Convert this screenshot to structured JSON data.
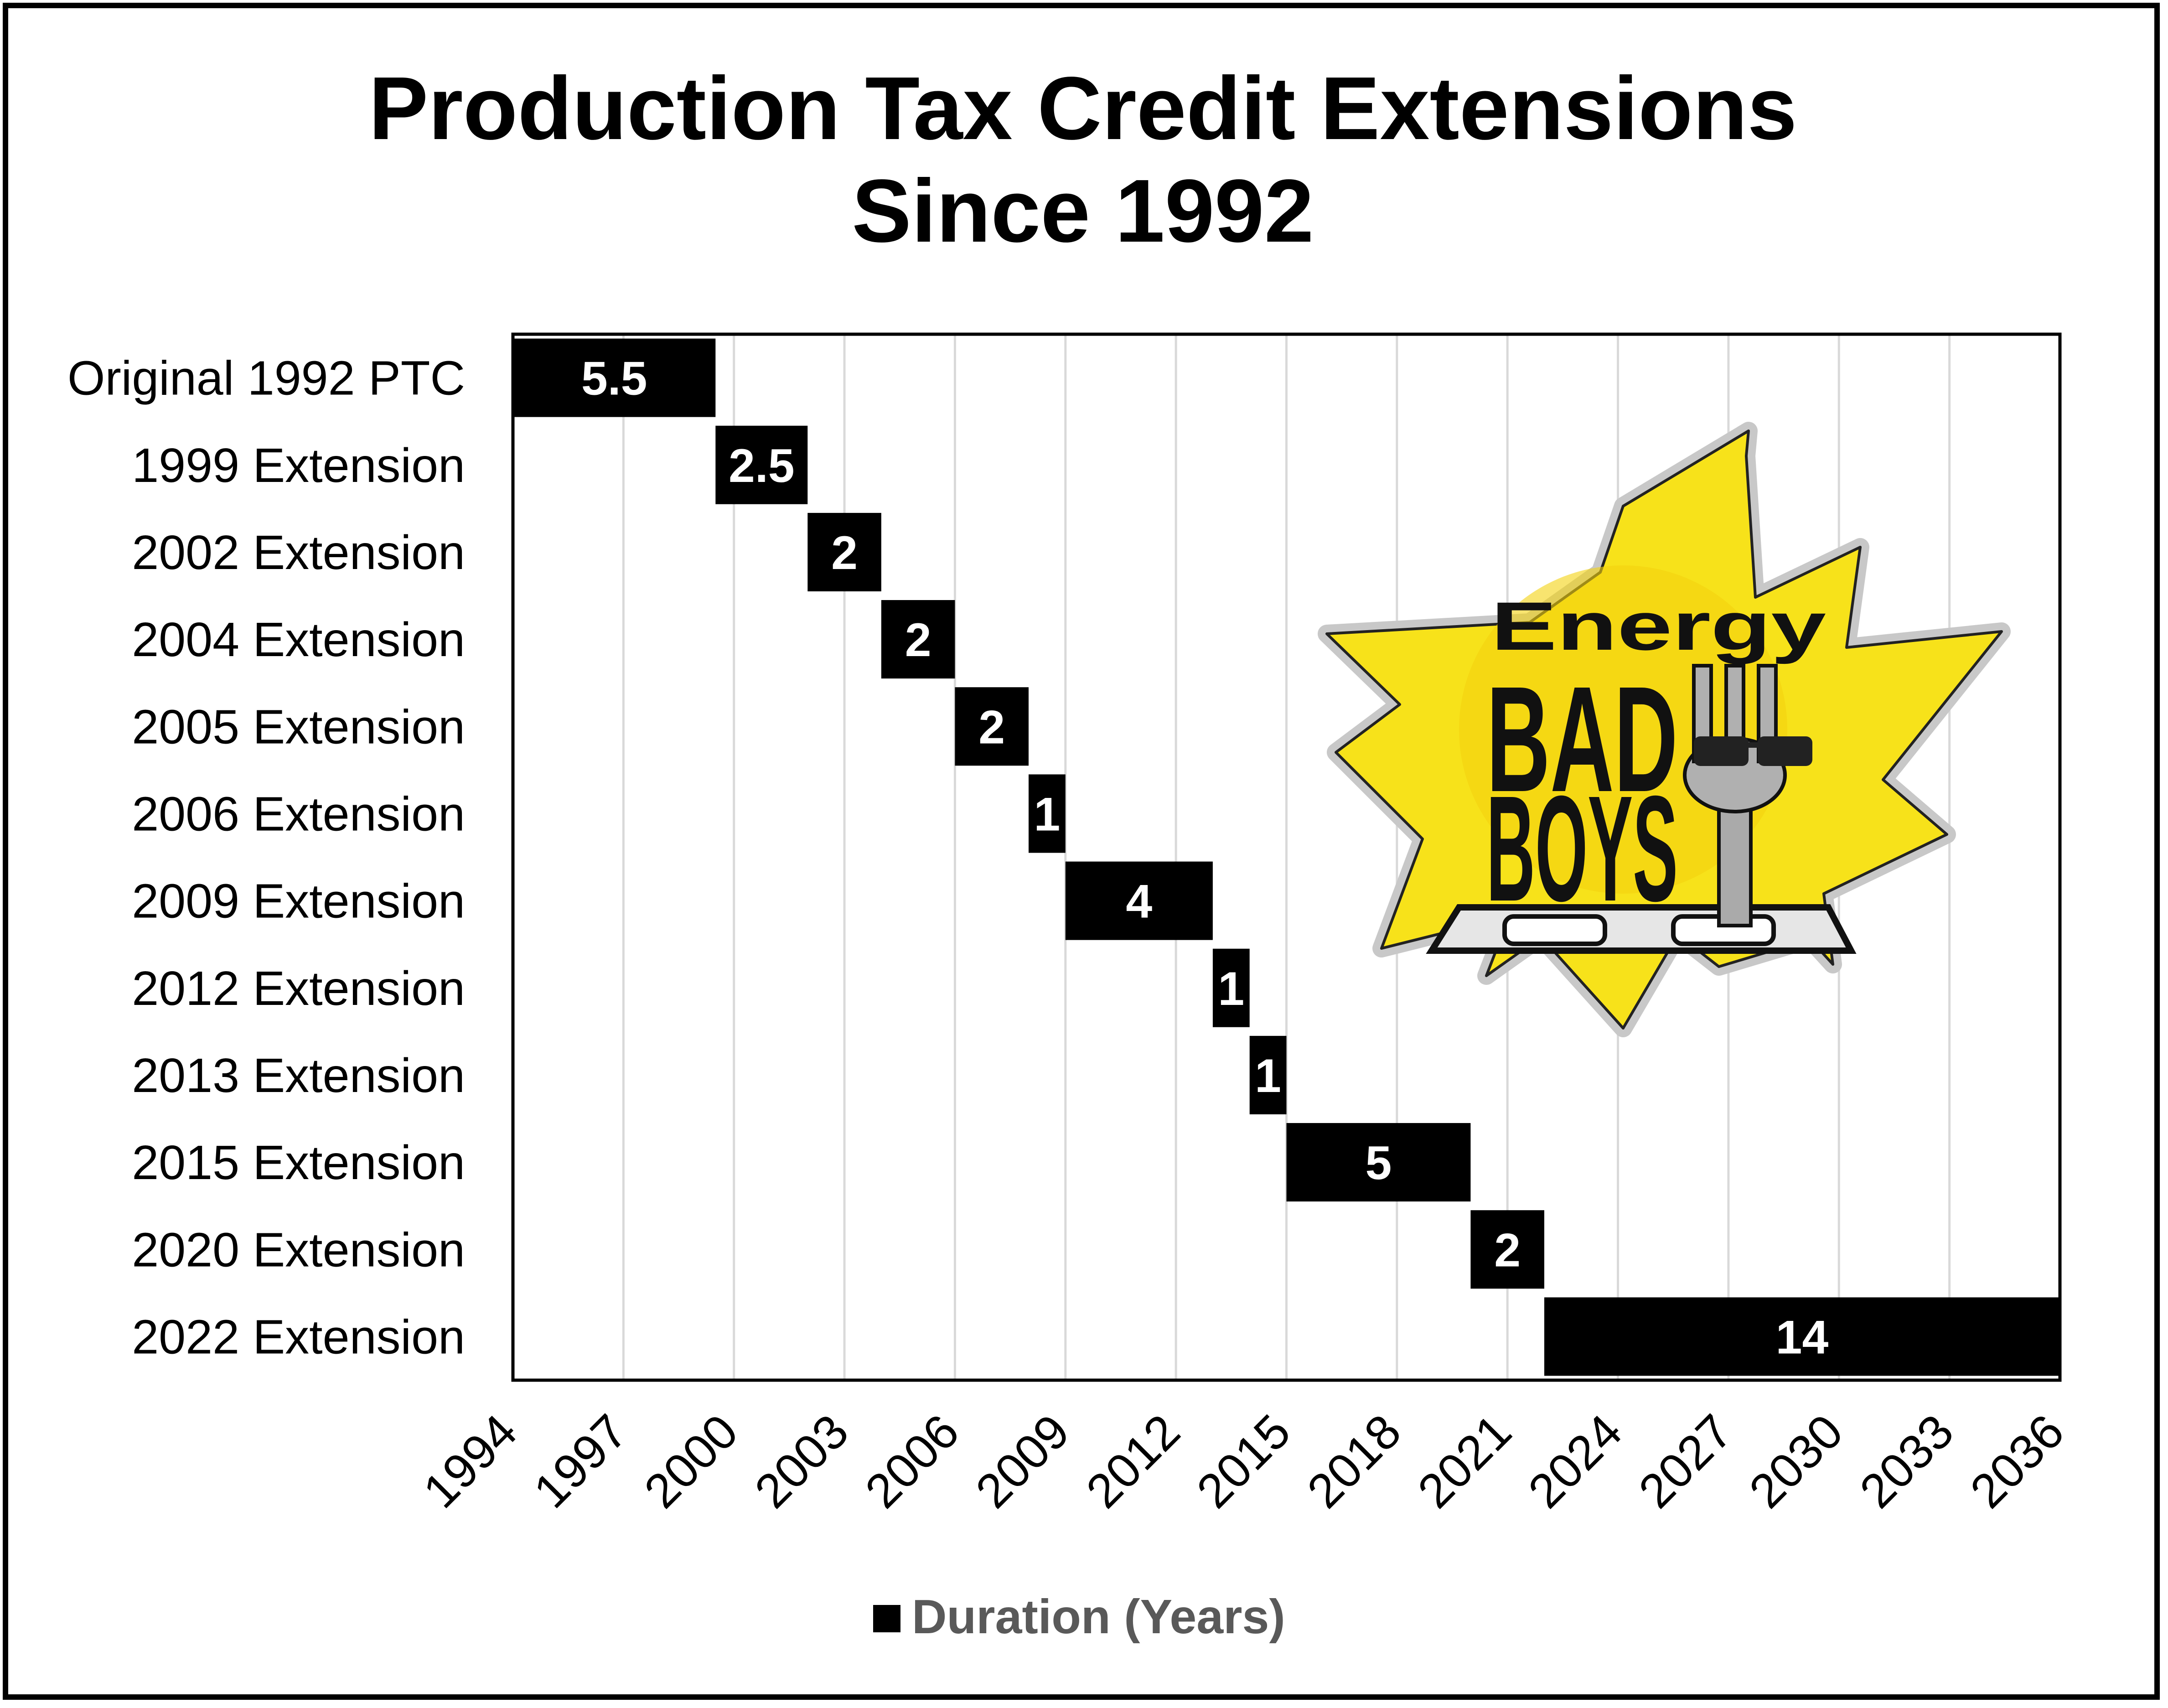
{
  "colors": {
    "bar": "#000000",
    "bar_label": "#ffffff",
    "grid": "#d9d9d9",
    "legend_text": "#595959",
    "logo_burst": "#f7e21a"
  },
  "chart_data": {
    "type": "bar",
    "orientation": "horizontal-floating",
    "title_lines": [
      "Production Tax Credit Extensions",
      "Since 1992"
    ],
    "categories": [
      "Original 1992 PTC",
      "1999 Extension",
      "2002 Extension",
      "2004 Extension",
      "2005 Extension",
      "2006 Extension",
      "2009 Extension",
      "2012 Extension",
      "2013 Extension",
      "2015 Extension",
      "2020 Extension",
      "2022 Extension"
    ],
    "series": [
      {
        "name": "Duration (Years)",
        "start": [
          1994,
          1999.5,
          2002,
          2004,
          2006,
          2008,
          2009,
          2013,
          2014,
          2015,
          2020,
          2022
        ],
        "values": [
          5.5,
          2.5,
          2,
          2,
          2,
          1,
          4,
          1,
          1,
          5,
          2,
          14
        ]
      }
    ],
    "x_ticks": [
      "1994",
      "1997",
      "2000",
      "2003",
      "2006",
      "2009",
      "2012",
      "2015",
      "2018",
      "2021",
      "2024",
      "2027",
      "2030",
      "2033",
      "2036"
    ],
    "xlim": [
      1994,
      2036
    ],
    "grid": "vertical",
    "legend": "bottom"
  },
  "logo": {
    "line1": "Energy",
    "line2": "BAD",
    "line3": "BOYS"
  }
}
